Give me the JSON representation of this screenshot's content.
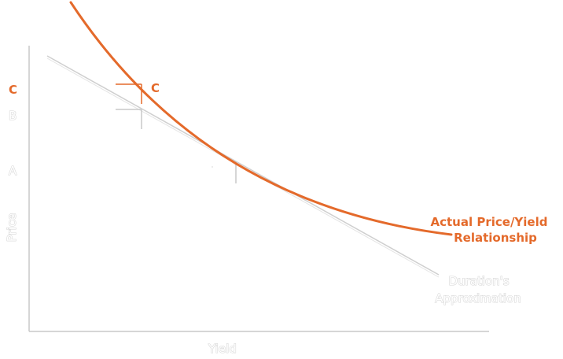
{
  "axes": {
    "x_label": "Yield",
    "y_label": "Price",
    "y_ticks": [
      "A",
      "B"
    ],
    "y_tick_highlight": "C"
  },
  "curve": {
    "point_label": "C",
    "label_line1": "Actual Price/Yield",
    "label_line2": "Relationship",
    "color": "#e46a2b"
  },
  "tangent": {
    "label_line1": "Duration's",
    "label_line2": "Approximation",
    "color": "#cfcfcf"
  },
  "axis_color": "#c8c8c8"
}
